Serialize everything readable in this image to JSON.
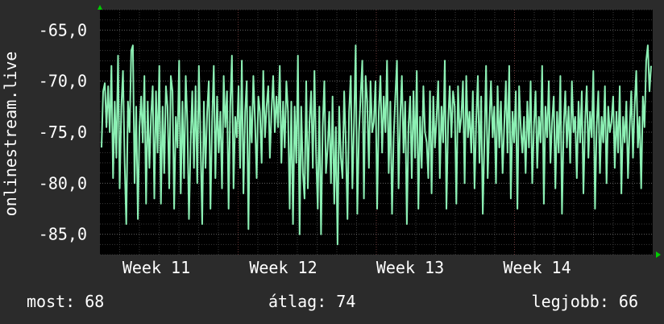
{
  "chart_data": {
    "type": "line",
    "title": "",
    "xlabel": "",
    "ylabel": "onlinestream.live",
    "ylim": [
      -87.0,
      -63.0
    ],
    "y_ticks": [
      -65.0,
      -70.0,
      -75.0,
      -80.0,
      -85.0
    ],
    "y_tick_labels": [
      "-65,0",
      "-70,0",
      "-75,0",
      "-80,0",
      "-85,0"
    ],
    "x_tick_labels": [
      "Week 11",
      "Week 12",
      "Week 13",
      "Week 14"
    ],
    "grid": true,
    "legend": "none",
    "series": [
      {
        "values": [
          -76.5,
          -71.0,
          -70.2,
          -74.5,
          -70.5,
          -75.0,
          -68.5,
          -79.5,
          -72.0,
          -77.5,
          -67.5,
          -80.5,
          -72.5,
          -69.0,
          -78.0,
          -84.0,
          -72.0,
          -75.0,
          -67.0,
          -66.5,
          -80.0,
          -72.5,
          -83.5,
          -74.5,
          -71.5,
          -76.0,
          -69.5,
          -82.0,
          -72.0,
          -78.5,
          -73.5,
          -70.5,
          -81.5,
          -71.0,
          -77.0,
          -68.5,
          -82.0,
          -72.5,
          -79.0,
          -70.5,
          -72.5,
          -80.5,
          -69.5,
          -71.0,
          -82.5,
          -73.5,
          -76.5,
          -68.0,
          -81.0,
          -72.0,
          -79.5,
          -69.5,
          -74.0,
          -83.5,
          -76.0,
          -71.0,
          -78.5,
          -70.5,
          -80.0,
          -68.5,
          -76.0,
          -84.0,
          -72.0,
          -78.5,
          -73.0,
          -70.0,
          -82.5,
          -74.0,
          -68.5,
          -79.5,
          -71.5,
          -77.0,
          -73.0,
          -80.5,
          -69.5,
          -74.5,
          -71.0,
          -82.5,
          -72.5,
          -67.5,
          -80.5,
          -73.5,
          -75.5,
          -70.5,
          -78.5,
          -68.0,
          -81.0,
          -73.0,
          -70.0,
          -84.5,
          -72.5,
          -76.0,
          -69.5,
          -74.0,
          -79.5,
          -71.5,
          -73.0,
          -78.0,
          -69.0,
          -75.5,
          -72.5,
          -70.5,
          -77.5,
          -73.0,
          -69.5,
          -75.0,
          -71.5,
          -74.5,
          -68.5,
          -78.0,
          -72.0,
          -76.5,
          -70.0,
          -73.0,
          -82.5,
          -72.0,
          -84.0,
          -72.5,
          -78.0,
          -67.5,
          -85.0,
          -72.5,
          -79.0,
          -81.5,
          -70.0,
          -80.5,
          -74.0,
          -71.0,
          -78.5,
          -69.0,
          -77.0,
          -82.5,
          -72.5,
          -85.0,
          -74.5,
          -70.0,
          -79.0,
          -76.5,
          -73.0,
          -80.0,
          -71.5,
          -82.0,
          -74.5,
          -86.0,
          -72.5,
          -77.5,
          -79.5,
          -71.0,
          -76.0,
          -83.5,
          -73.0,
          -69.5,
          -80.5,
          -74.0,
          -66.5,
          -83.0,
          -75.0,
          -71.5,
          -68.0,
          -81.5,
          -69.5,
          -72.0,
          -78.5,
          -70.0,
          -75.0,
          -74.0,
          -70.0,
          -82.5,
          -73.0,
          -69.5,
          -77.0,
          -71.5,
          -75.0,
          -68.0,
          -79.0,
          -72.0,
          -83.0,
          -75.5,
          -71.5,
          -68.0,
          -80.5,
          -73.5,
          -69.5,
          -77.0,
          -72.0,
          -84.0,
          -74.5,
          -71.5,
          -79.5,
          -71.0,
          -77.5,
          -69.0,
          -82.5,
          -73.5,
          -78.5,
          -70.5,
          -75.0,
          -76.0,
          -79.5,
          -71.0,
          -81.0,
          -71.5,
          -76.5,
          -73.5,
          -70.0,
          -79.5,
          -72.5,
          -76.0,
          -68.0,
          -82.5,
          -74.0,
          -70.5,
          -75.5,
          -71.0,
          -72.5,
          -82.0,
          -70.5,
          -75.0,
          -73.5,
          -70.0,
          -80.0,
          -69.5,
          -75.5,
          -73.0,
          -77.0,
          -71.0,
          -80.5,
          -74.0,
          -69.5,
          -78.0,
          -71.5,
          -83.0,
          -76.0,
          -68.5,
          -79.5,
          -74.0,
          -70.0,
          -75.5,
          -72.5,
          -80.0,
          -70.5,
          -76.5,
          -72.0,
          -79.0,
          -74.5,
          -70.0,
          -77.0,
          -68.5,
          -81.5,
          -73.0,
          -76.0,
          -71.0,
          -82.5,
          -70.5,
          -74.5,
          -77.0,
          -73.5,
          -79.0,
          -72.0,
          -76.5,
          -70.0,
          -80.0,
          -74.5,
          -71.0,
          -78.5,
          -73.5,
          -76.0,
          -68.5,
          -82.0,
          -72.5,
          -75.5,
          -70.0,
          -78.0,
          -74.0,
          -71.5,
          -80.5,
          -73.0,
          -77.0,
          -69.5,
          -83.0,
          -74.5,
          -71.0,
          -76.5,
          -72.5,
          -78.0,
          -70.0,
          -75.0,
          -73.5,
          -79.5,
          -72.0,
          -76.0,
          -71.0,
          -81.0,
          -74.0,
          -70.5,
          -77.5,
          -73.0,
          -75.5,
          -69.0,
          -82.5,
          -74.5,
          -71.0,
          -79.0,
          -73.5,
          -76.0,
          -70.5,
          -80.0,
          -72.5,
          -75.0,
          -74.0,
          -71.5,
          -78.5,
          -73.0,
          -77.0,
          -70.5,
          -81.0,
          -73.5,
          -76.0,
          -72.0,
          -79.5,
          -74.5,
          -71.0,
          -77.5,
          -72.5,
          -69.0,
          -76.5,
          -73.5,
          -80.5,
          -71.5,
          -74.5,
          -68.0,
          -66.5,
          -71.0,
          -68.5
        ],
        "color": "#8cf0b4"
      }
    ]
  },
  "stats": {
    "current": "most: 68",
    "average": "átlag: 74",
    "best": "legjobb: 66"
  },
  "colors": {
    "background": "#2b2b2b",
    "plot_background": "#000000",
    "grid_major": "#5a5a5a",
    "grid_minor": "#3a3a3a",
    "series": "#8cf0b4",
    "axis_arrow": "#00cc00",
    "text": "#ffffff"
  }
}
